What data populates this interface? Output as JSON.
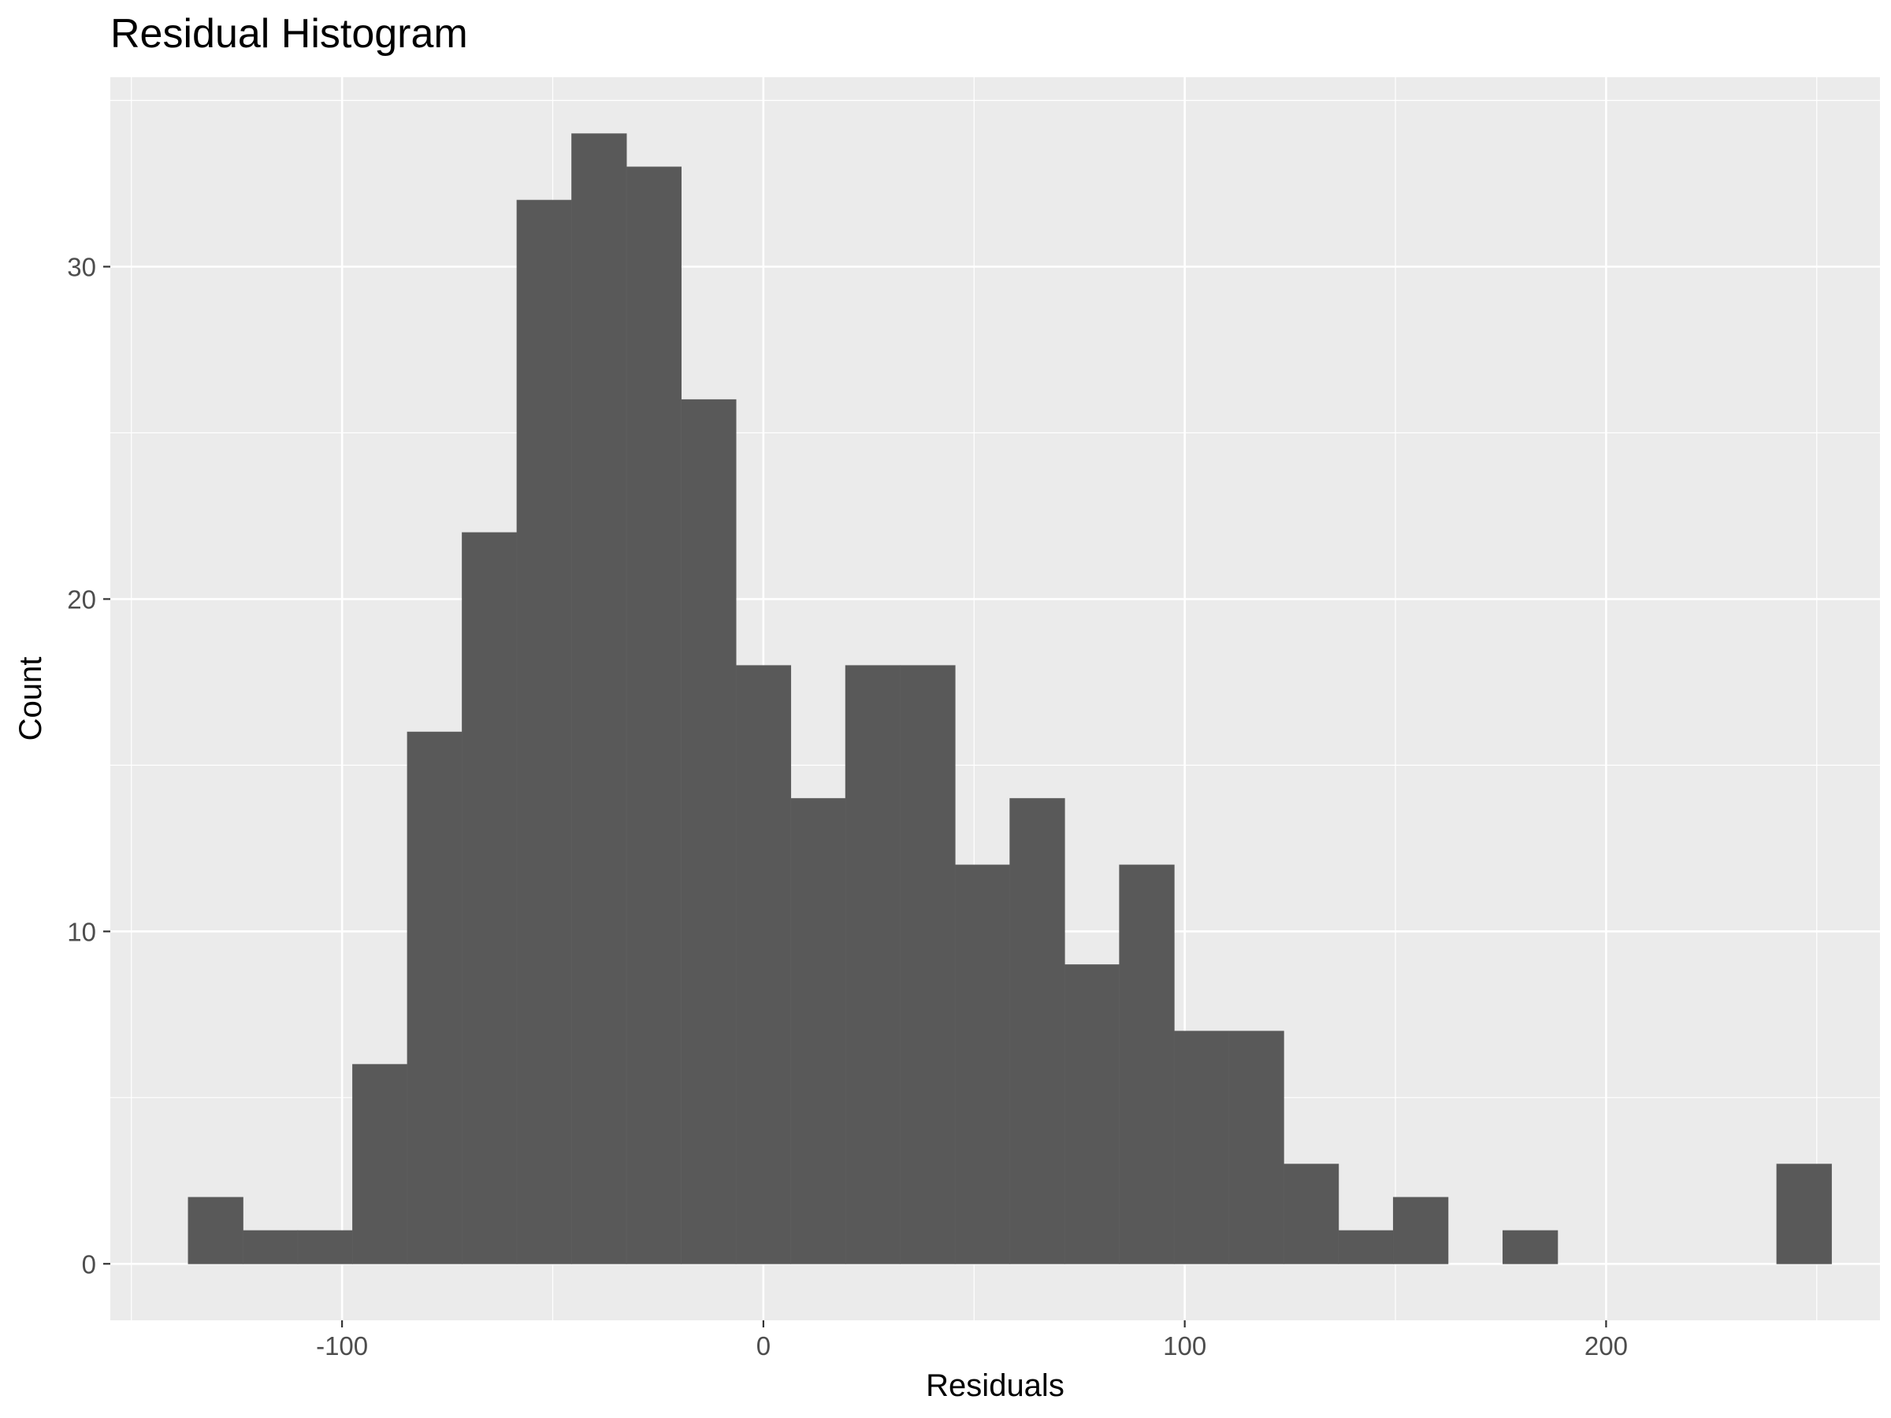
{
  "chart_data": {
    "type": "bar",
    "title": "Residual Histogram",
    "xlabel": "Residuals",
    "ylabel": "Count",
    "xlim": [
      -155,
      265
    ],
    "ylim": [
      -1.7,
      35.7
    ],
    "x_ticks": [
      -100,
      0,
      100,
      200
    ],
    "x_tick_labels": [
      "-100",
      "0",
      "100",
      "200"
    ],
    "y_ticks": [
      0,
      10,
      20,
      30
    ],
    "y_tick_labels": [
      "0",
      "10",
      "20",
      "30"
    ],
    "grid": true,
    "bin_width": 13,
    "bin_centers": [
      -130,
      -117,
      -104,
      -91,
      -78,
      -65,
      -52,
      -39,
      -26,
      -13,
      0,
      13,
      26,
      39,
      52,
      65,
      78,
      91,
      104,
      117,
      130,
      143,
      156,
      169,
      182,
      195,
      208,
      221,
      234,
      247
    ],
    "counts": [
      2,
      1,
      1,
      6,
      16,
      22,
      32,
      34,
      33,
      26,
      18,
      14,
      18,
      18,
      12,
      14,
      9,
      12,
      7,
      7,
      3,
      1,
      2,
      0,
      1,
      0,
      0,
      0,
      0,
      3
    ],
    "colors": {
      "panel": "#ebebeb",
      "grid_major": "#ffffff",
      "bar_fill": "#595959",
      "tick_text": "#4d4d4d",
      "tick_mark": "#333333"
    }
  }
}
